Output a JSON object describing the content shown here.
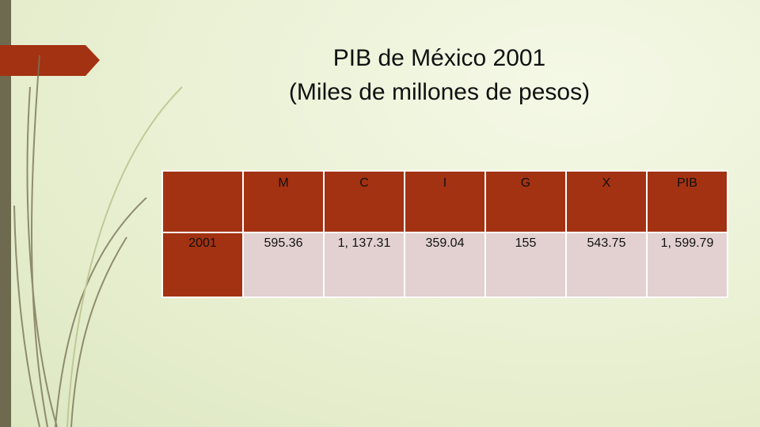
{
  "title": {
    "line1": "PIB de México 2001",
    "line2": "(Miles de millones de pesos)"
  },
  "table": {
    "header": [
      "",
      "M",
      "C",
      "I",
      "G",
      "X",
      "PIB"
    ],
    "rows": [
      [
        "2001",
        "595.36",
        "1, 137.31",
        "359.04",
        "155",
        "543.75",
        "1, 599.79"
      ]
    ]
  }
}
